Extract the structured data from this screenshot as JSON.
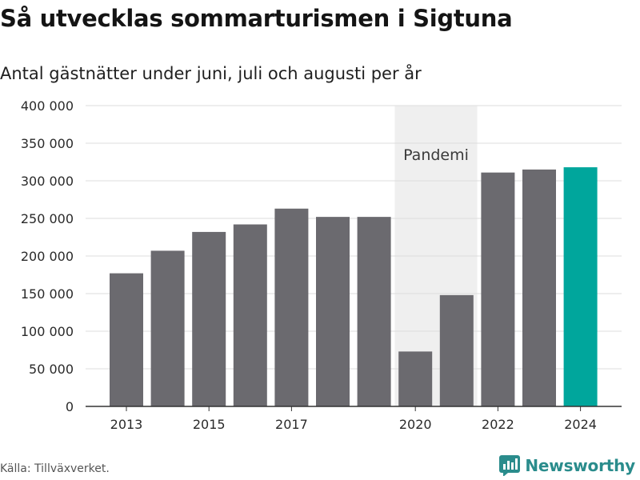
{
  "header": {
    "title": "Så utvecklas sommarturismen i Sigtuna",
    "subtitle": "Antal gästnätter under juni, juli och augusti per år"
  },
  "footer": {
    "source": "Källa: Tillväxverket.",
    "brand": "Newsworthy"
  },
  "colors": {
    "bar": "#6b6a6f",
    "highlight": "#00a69c",
    "band": "#efefef",
    "grid": "#dddddd",
    "brand": "#2a8c8c"
  },
  "chart_data": {
    "type": "bar",
    "categories": [
      "2013",
      "2014",
      "2015",
      "2016",
      "2017",
      "2018",
      "2019",
      "2020",
      "2021",
      "2022",
      "2023",
      "2024"
    ],
    "values": [
      177000,
      207000,
      232000,
      242000,
      263000,
      252000,
      252000,
      73000,
      148000,
      311000,
      315000,
      318000
    ],
    "highlight_category": "2024",
    "ylim": [
      0,
      400000
    ],
    "y_ticks": [
      0,
      50000,
      100000,
      150000,
      200000,
      250000,
      300000,
      350000,
      400000
    ],
    "y_tick_labels": [
      "0",
      "50 000",
      "100 000",
      "150 000",
      "200 000",
      "250 000",
      "300 000",
      "350 000",
      "400 000"
    ],
    "x_tick_labels": [
      "2013",
      "2015",
      "2017",
      "2020",
      "2022",
      "2024"
    ],
    "annotation": {
      "text": "Pandemi",
      "from_category": "2020",
      "to_category": "2021"
    },
    "grid": true
  }
}
